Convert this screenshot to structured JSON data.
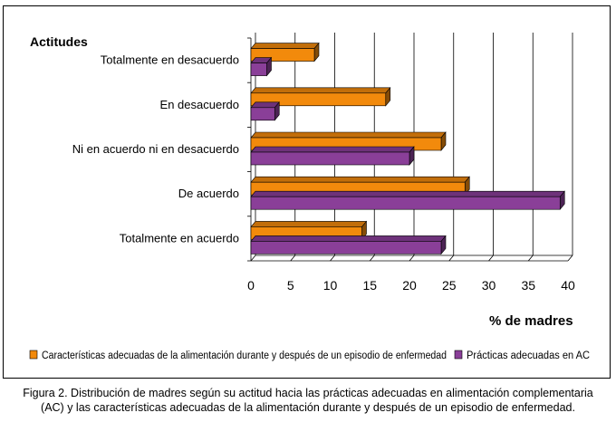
{
  "chart_data": {
    "type": "bar",
    "orientation": "horizontal",
    "three_d": true,
    "categories": [
      "Totalmente en desacuerdo",
      "En desacuerdo",
      "Ni en acuerdo ni en desacuerdo",
      "De acuerdo",
      "Totalmente en acuerdo"
    ],
    "series": [
      {
        "name": "Características adecuadas de la alimentación durante y después de un episodio de enfermedad",
        "color": "#f28a0c",
        "values": [
          8,
          17,
          24,
          27,
          14
        ]
      },
      {
        "name": "Prácticas adecuadas en AC",
        "color": "#8a3f98",
        "values": [
          2,
          3,
          20,
          39,
          24
        ]
      }
    ],
    "ylabel": "Actitudes",
    "xlabel": "% de madres",
    "x_ticks": [
      "0",
      "5",
      "10",
      "15",
      "20",
      "25",
      "30",
      "35",
      "40"
    ],
    "xlim": [
      0,
      40
    ],
    "grid": true,
    "legend_position": "bottom"
  },
  "caption": "Figura 2. Distribución de madres según su actitud hacia las prácticas adecuadas en alimentación complementaria (AC) y las características adecuadas de la alimentación durante y después de un episodio de enfermedad."
}
